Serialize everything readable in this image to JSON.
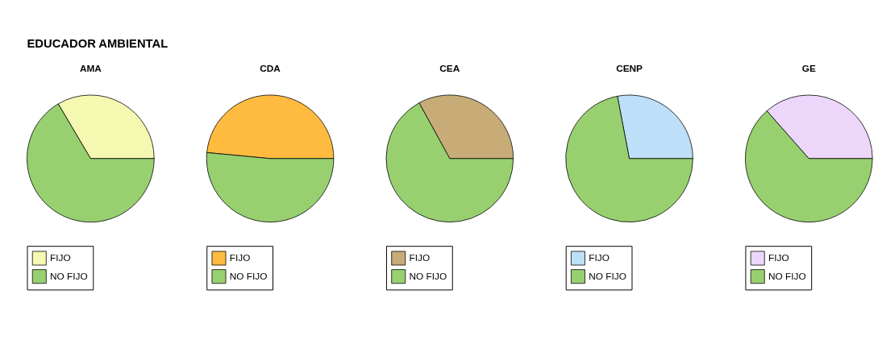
{
  "chart_data": [
    {
      "type": "other",
      "title": "EDUCADOR AMBIENTAL"
    },
    {
      "type": "pie",
      "title": "AMA",
      "categories": [
        "FIJO",
        "NO FIJO"
      ],
      "values": [
        33.5,
        66.5
      ],
      "colors": [
        "#f5f8b0",
        "#98d070"
      ],
      "legend": "bottom"
    },
    {
      "type": "pie",
      "title": "CDA",
      "categories": [
        "FIJO",
        "NO FIJO"
      ],
      "values": [
        48.5,
        51.5
      ],
      "colors": [
        "#ffbb40",
        "#98d070"
      ],
      "legend": "bottom"
    },
    {
      "type": "pie",
      "title": "CEA",
      "categories": [
        "FIJO",
        "NO FIJO"
      ],
      "values": [
        33,
        67
      ],
      "colors": [
        "#c8ac78",
        "#98d070"
      ],
      "legend": "bottom"
    },
    {
      "type": "pie",
      "title": "CENP",
      "categories": [
        "FIJO",
        "NO FIJO"
      ],
      "values": [
        28,
        72
      ],
      "colors": [
        "#bde0f8",
        "#98d070"
      ],
      "legend": "bottom"
    },
    {
      "type": "pie",
      "title": "GE",
      "categories": [
        "FIJO",
        "NO FIJO"
      ],
      "values": [
        36.5,
        63.5
      ],
      "colors": [
        "#ecd6fa",
        "#98d070"
      ],
      "legend": "bottom"
    }
  ]
}
